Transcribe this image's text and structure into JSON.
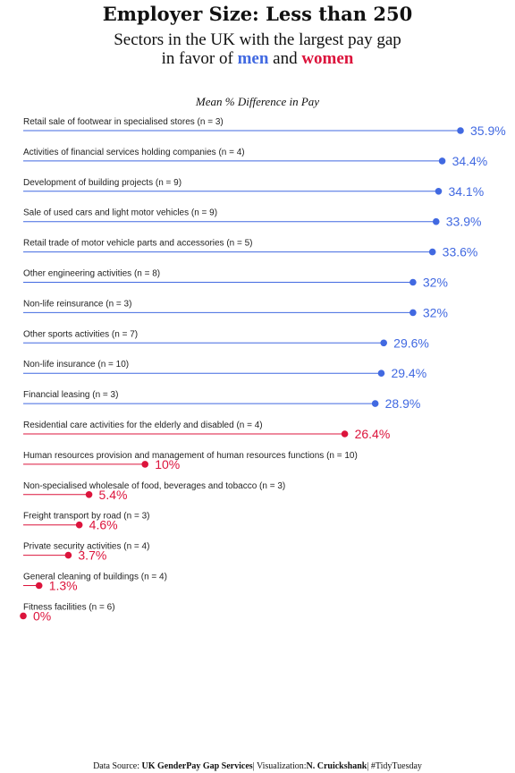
{
  "title": "Employer Size: Less than 250",
  "subtitle": {
    "line1": "Sectors in the UK with the largest pay gap",
    "line2_pre": "in favor of",
    "men": "men",
    "and": "and",
    "women": "women"
  },
  "footer": {
    "source_label": "Data Source:",
    "source": "UK GenderPay Gap Services",
    "sep1": "|",
    "viz_label": "Visualization:",
    "author": "N. Cruickshank",
    "sep2": "|",
    "tag": "#TidyTuesday"
  },
  "colors": {
    "men": "#4169E1",
    "women": "#DC143C"
  },
  "chart_data": {
    "type": "lollipop",
    "axis_title": "Mean % Difference in Pay",
    "xlim": [
      0,
      35.9
    ],
    "items": [
      {
        "label": "Retail sale of footwear in specialised stores (n = 3)",
        "value": 35.9,
        "value_label": "35.9%",
        "favor": "men"
      },
      {
        "label": "Activities of financial services holding companies (n = 4)",
        "value": 34.4,
        "value_label": "34.4%",
        "favor": "men"
      },
      {
        "label": "Development of building projects (n = 9)",
        "value": 34.1,
        "value_label": "34.1%",
        "favor": "men"
      },
      {
        "label": "Sale of used cars and light motor vehicles (n = 9)",
        "value": 33.9,
        "value_label": "33.9%",
        "favor": "men"
      },
      {
        "label": "Retail trade of motor vehicle parts and accessories (n = 5)",
        "value": 33.6,
        "value_label": "33.6%",
        "favor": "men"
      },
      {
        "label": "Other engineering activities (n = 8)",
        "value": 32,
        "value_label": "32%",
        "favor": "men"
      },
      {
        "label": "Non-life reinsurance (n = 3)",
        "value": 32,
        "value_label": "32%",
        "favor": "men"
      },
      {
        "label": "Other sports activities (n = 7)",
        "value": 29.6,
        "value_label": "29.6%",
        "favor": "men"
      },
      {
        "label": "Non-life insurance (n = 10)",
        "value": 29.4,
        "value_label": "29.4%",
        "favor": "men"
      },
      {
        "label": "Financial leasing (n = 3)",
        "value": 28.9,
        "value_label": "28.9%",
        "favor": "men"
      },
      {
        "label": "Residential care activities for the elderly and disabled (n = 4)",
        "value": 26.4,
        "value_label": "26.4%",
        "favor": "women"
      },
      {
        "label": "Human resources provision and management of human resources functions (n = 10)",
        "value": 10,
        "value_label": "10%",
        "favor": "women"
      },
      {
        "label": "Non-specialised wholesale of food, beverages and tobacco (n = 3)",
        "value": 5.4,
        "value_label": "5.4%",
        "favor": "women"
      },
      {
        "label": "Freight transport by road (n = 3)",
        "value": 4.6,
        "value_label": "4.6%",
        "favor": "women"
      },
      {
        "label": "Private security activities (n = 4)",
        "value": 3.7,
        "value_label": "3.7%",
        "favor": "women"
      },
      {
        "label": "General cleaning of buildings (n = 4)",
        "value": 1.3,
        "value_label": "1.3%",
        "favor": "women"
      },
      {
        "label": "Fitness facilities (n = 6)",
        "value": 0,
        "value_label": "0%",
        "favor": "women"
      }
    ]
  }
}
